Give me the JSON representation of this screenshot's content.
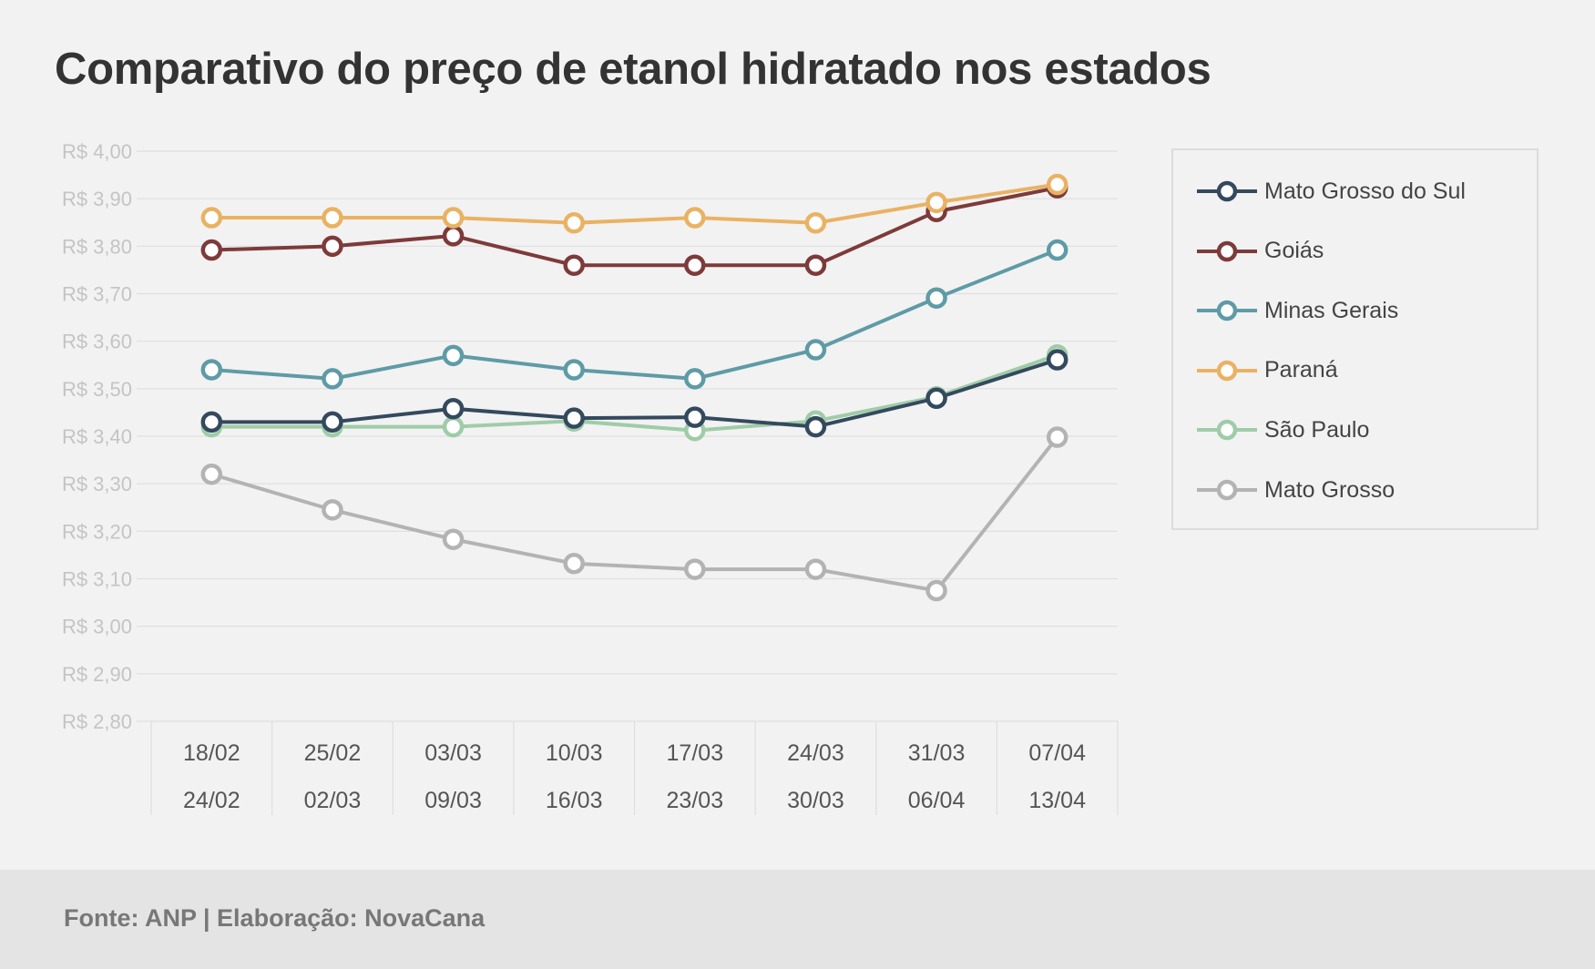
{
  "title": "Comparativo do preço de etanol hidratado nos estados",
  "source": "Fonte: ANP | Elaboração: NovaCana",
  "chart_data": {
    "type": "line",
    "title": "Comparativo do preço de etanol hidratado nos estados",
    "xlabel": "",
    "ylabel": "",
    "ylim": [
      2.8,
      4.0
    ],
    "y_ticks": [
      {
        "value": 4.0,
        "label": "R$ 4,00"
      },
      {
        "value": 3.9,
        "label": "R$ 3,90"
      },
      {
        "value": 3.8,
        "label": "R$ 3,80"
      },
      {
        "value": 3.7,
        "label": "R$ 3,70"
      },
      {
        "value": 3.6,
        "label": "R$ 3,60"
      },
      {
        "value": 3.5,
        "label": "R$ 3,50"
      },
      {
        "value": 3.4,
        "label": "R$ 3,40"
      },
      {
        "value": 3.3,
        "label": "R$ 3,30"
      },
      {
        "value": 3.2,
        "label": "R$ 3,20"
      },
      {
        "value": 3.1,
        "label": "R$ 3,10"
      },
      {
        "value": 3.0,
        "label": "R$ 3,00"
      },
      {
        "value": 2.9,
        "label": "R$ 2,90"
      },
      {
        "value": 2.8,
        "label": "R$ 2,80"
      }
    ],
    "categories": [
      {
        "start": "18/02",
        "end": "24/02"
      },
      {
        "start": "25/02",
        "end": "02/03"
      },
      {
        "start": "03/03",
        "end": "09/03"
      },
      {
        "start": "10/03",
        "end": "16/03"
      },
      {
        "start": "17/03",
        "end": "23/03"
      },
      {
        "start": "24/03",
        "end": "30/03"
      },
      {
        "start": "31/03",
        "end": "06/04"
      },
      {
        "start": "07/04",
        "end": "13/04"
      }
    ],
    "grid": true,
    "legend_position": "right",
    "series": [
      {
        "name": "Mato Grosso",
        "color": "#b3b3b3",
        "values": [
          3.32,
          3.245,
          3.183,
          3.132,
          3.12,
          3.12,
          3.075,
          3.398
        ]
      },
      {
        "name": "São Paulo",
        "color": "#9fcca8",
        "values": [
          3.42,
          3.42,
          3.42,
          3.432,
          3.412,
          3.432,
          3.483,
          3.571
        ]
      },
      {
        "name": "Mato Grosso do Sul",
        "color": "#34495e",
        "values": [
          3.43,
          3.43,
          3.458,
          3.438,
          3.44,
          3.42,
          3.48,
          3.561
        ]
      },
      {
        "name": "Minas Gerais",
        "color": "#5e9ba6",
        "values": [
          3.54,
          3.521,
          3.57,
          3.54,
          3.521,
          3.582,
          3.691,
          3.792
        ]
      },
      {
        "name": "Goiás",
        "color": "#7e3a3a",
        "values": [
          3.792,
          3.8,
          3.822,
          3.76,
          3.76,
          3.76,
          3.873,
          3.923
        ]
      },
      {
        "name": "Paraná",
        "color": "#e9b263",
        "values": [
          3.86,
          3.86,
          3.86,
          3.849,
          3.86,
          3.849,
          3.892,
          3.93
        ]
      }
    ],
    "legend_order": [
      "Mato Grosso do Sul",
      "Goiás",
      "Minas Gerais",
      "Paraná",
      "São Paulo",
      "Mato Grosso"
    ]
  }
}
